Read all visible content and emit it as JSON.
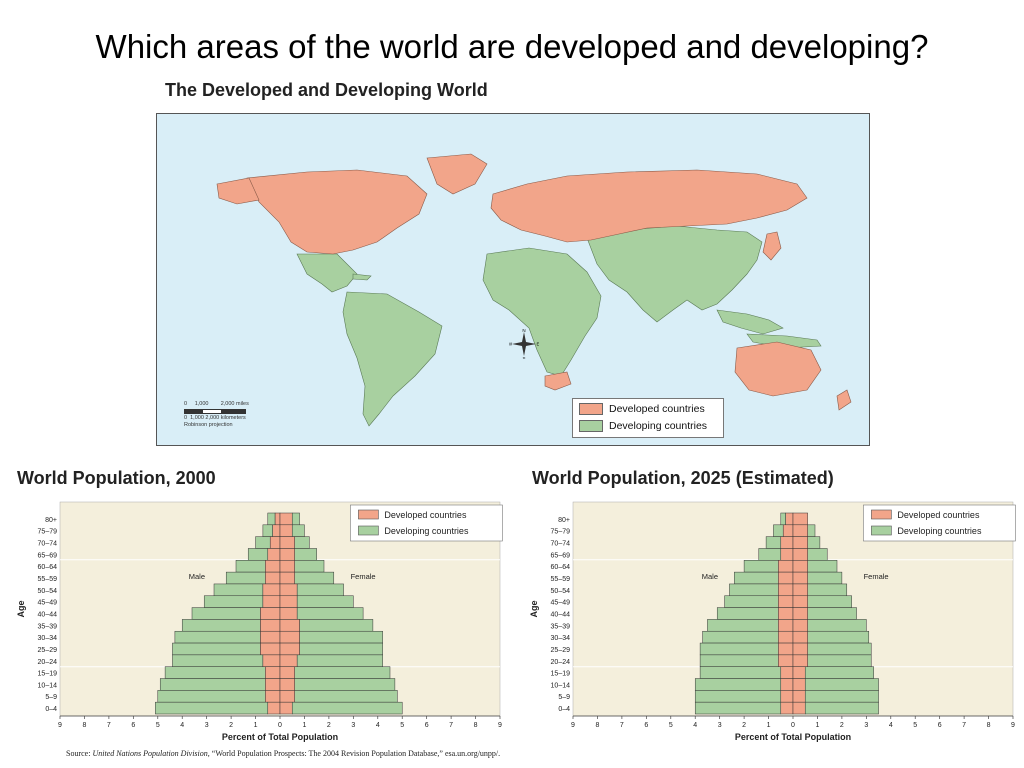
{
  "slide_title": "Which areas of the world are developed and developing?",
  "map": {
    "title": "The Developed and Developing World",
    "legend": [
      {
        "label": "Developed countries",
        "color": "#f2a58a"
      },
      {
        "label": "Developing countries",
        "color": "#a8d0a0"
      }
    ],
    "scale": {
      "miles": [
        "0",
        "1,000",
        "2,000 miles"
      ],
      "km": [
        "0",
        "1,000",
        "2,000 kilometers"
      ],
      "projection": "Robinson projection"
    },
    "compass": [
      "N",
      "S",
      "E",
      "W"
    ]
  },
  "colors": {
    "developed": "#f2a58a",
    "developing": "#a8d0a0",
    "ocean": "#d9eef7",
    "chart_bg": "#f4efdc",
    "grid": "#e8e3c8"
  },
  "chart_data": [
    {
      "type": "bar",
      "title": "World Population, 2000",
      "ylabel": "Age",
      "xlabel": "Percent of Total Population",
      "xlim": [
        -9,
        9
      ],
      "x_ticks": [
        "9",
        "8",
        "7",
        "6",
        "5",
        "4",
        "3",
        "2",
        "1",
        "0",
        "1",
        "2",
        "3",
        "4",
        "5",
        "6",
        "7",
        "8",
        "9"
      ],
      "side_labels": {
        "left": "Male",
        "right": "Female"
      },
      "legend": [
        "Developed countries",
        "Developing countries"
      ],
      "categories": [
        "80+",
        "75–79",
        "70–74",
        "65–69",
        "60–64",
        "55–59",
        "50–54",
        "45–49",
        "40–44",
        "35–39",
        "30–34",
        "25–29",
        "20–24",
        "15–19",
        "10–14",
        "5–9",
        "0–4"
      ],
      "series": [
        {
          "name": "Developed countries",
          "male": [
            0.2,
            0.3,
            0.4,
            0.5,
            0.6,
            0.6,
            0.7,
            0.7,
            0.8,
            0.8,
            0.8,
            0.8,
            0.7,
            0.6,
            0.6,
            0.6,
            0.5
          ],
          "female": [
            0.5,
            0.5,
            0.6,
            0.6,
            0.6,
            0.6,
            0.7,
            0.7,
            0.7,
            0.8,
            0.8,
            0.8,
            0.7,
            0.6,
            0.6,
            0.6,
            0.5
          ]
        },
        {
          "name": "Developing countries",
          "male": [
            0.3,
            0.4,
            0.6,
            0.8,
            1.2,
            1.6,
            2.0,
            2.4,
            2.8,
            3.2,
            3.5,
            3.6,
            3.7,
            4.1,
            4.3,
            4.4,
            4.6
          ],
          "female": [
            0.3,
            0.5,
            0.6,
            0.9,
            1.2,
            1.6,
            1.9,
            2.3,
            2.7,
            3.0,
            3.4,
            3.4,
            3.5,
            3.9,
            4.1,
            4.2,
            4.5
          ]
        }
      ]
    },
    {
      "type": "bar",
      "title": "World Population, 2025 (Estimated)",
      "ylabel": "Age",
      "xlabel": "Percent of Total Population",
      "xlim": [
        -9,
        9
      ],
      "x_ticks": [
        "9",
        "8",
        "7",
        "6",
        "5",
        "4",
        "3",
        "2",
        "1",
        "0",
        "1",
        "2",
        "3",
        "4",
        "5",
        "6",
        "7",
        "8",
        "9"
      ],
      "side_labels": {
        "left": "Male",
        "right": "Female"
      },
      "legend": [
        "Developed countries",
        "Developing countries"
      ],
      "categories": [
        "80+",
        "75–79",
        "70–74",
        "65–69",
        "60–64",
        "55–59",
        "50–54",
        "45–49",
        "40–44",
        "35–39",
        "30–34",
        "25–29",
        "20–24",
        "15–19",
        "10–14",
        "5–9",
        "0–4"
      ],
      "series": [
        {
          "name": "Developed countries",
          "male": [
            0.3,
            0.4,
            0.5,
            0.5,
            0.6,
            0.6,
            0.6,
            0.6,
            0.6,
            0.6,
            0.6,
            0.6,
            0.6,
            0.5,
            0.5,
            0.5,
            0.5
          ],
          "female": [
            0.6,
            0.6,
            0.6,
            0.6,
            0.6,
            0.6,
            0.6,
            0.6,
            0.6,
            0.6,
            0.6,
            0.6,
            0.6,
            0.5,
            0.5,
            0.5,
            0.5
          ]
        },
        {
          "name": "Developing countries",
          "male": [
            0.2,
            0.4,
            0.6,
            0.9,
            1.4,
            1.8,
            2.0,
            2.2,
            2.5,
            2.9,
            3.1,
            3.2,
            3.2,
            3.3,
            3.5,
            3.5,
            3.5
          ],
          "female": [
            0.0,
            0.3,
            0.5,
            0.8,
            1.2,
            1.4,
            1.6,
            1.8,
            2.0,
            2.4,
            2.5,
            2.6,
            2.6,
            2.8,
            3.0,
            3.0,
            3.0
          ]
        }
      ]
    }
  ],
  "source": {
    "prefix": "Source: ",
    "italic": "United Nations Population Division",
    "rest": ", “World Population Prospects: The 2004 Revision Population Database,” esa.un.org/unpp/."
  }
}
